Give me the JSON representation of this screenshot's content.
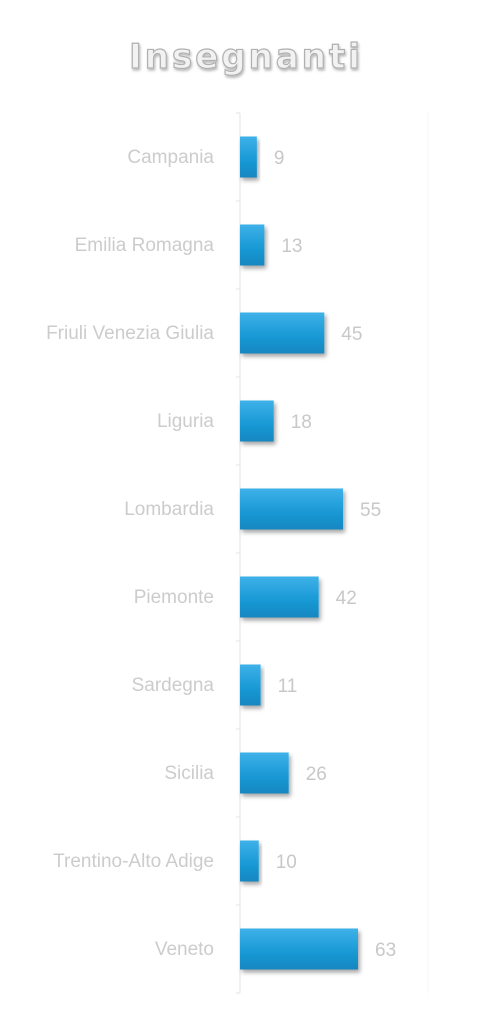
{
  "chart_data": {
    "type": "bar",
    "orientation": "horizontal",
    "title": "Insegnanti",
    "categories": [
      "Campania",
      "Emilia Romagna",
      "Friuli Venezia Giulia",
      "Liguria",
      "Lombardia",
      "Piemonte",
      "Sardegna",
      "Sicilia",
      "Trentino-Alto Adige",
      "Veneto"
    ],
    "values": [
      9,
      13,
      45,
      18,
      55,
      42,
      11,
      26,
      10,
      63
    ],
    "xlim": [
      0,
      63
    ],
    "grid": false,
    "legend": "none",
    "data_labels": true
  },
  "colors": {
    "bar": "#1a9ad6",
    "bar_light": "#3fb1e8",
    "bar_dark": "#1487c0",
    "label": "#cccccc",
    "value_label": "#c8c8c8",
    "title_fill": "#f2f2f2",
    "title_stroke": "#b0b0b0",
    "axis": "#e3e3e3"
  }
}
